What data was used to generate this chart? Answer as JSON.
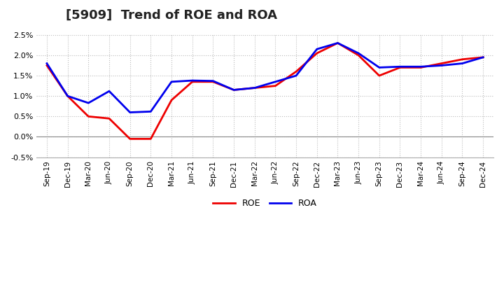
{
  "title": "[5909]  Trend of ROE and ROA",
  "x_labels": [
    "Sep-19",
    "Dec-19",
    "Mar-20",
    "Jun-20",
    "Sep-20",
    "Dec-20",
    "Mar-21",
    "Jun-21",
    "Sep-21",
    "Dec-21",
    "Mar-22",
    "Jun-22",
    "Sep-22",
    "Dec-22",
    "Mar-23",
    "Jun-23",
    "Sep-23",
    "Dec-23",
    "Mar-24",
    "Jun-24",
    "Sep-24",
    "Dec-24"
  ],
  "ROE": [
    0.0175,
    0.01,
    0.005,
    0.0045,
    -0.0005,
    -0.0005,
    0.009,
    0.0135,
    0.0135,
    0.0115,
    0.012,
    0.0125,
    0.016,
    0.0205,
    0.023,
    0.02,
    0.015,
    0.017,
    0.017,
    0.018,
    0.019,
    0.0195
  ],
  "ROA": [
    0.018,
    0.01,
    0.0083,
    0.0112,
    0.006,
    0.0062,
    0.0135,
    0.0138,
    0.0137,
    0.0115,
    0.012,
    0.0135,
    0.015,
    0.0215,
    0.023,
    0.0205,
    0.017,
    0.0172,
    0.0172,
    0.0175,
    0.018,
    0.0195
  ],
  "roe_color": "#ee0000",
  "roa_color": "#0000ee",
  "ylim_min": -0.005,
  "ylim_max": 0.025,
  "yticks": [
    -0.005,
    0.0,
    0.005,
    0.01,
    0.015,
    0.02,
    0.025
  ],
  "ytick_labels": [
    "-0.5%",
    "0.0%",
    "0.5%",
    "1.0%",
    "1.5%",
    "2.0%",
    "2.5%"
  ],
  "background_color": "#ffffff",
  "grid_color": "#bbbbbb",
  "title_fontsize": 13,
  "line_width": 2.0
}
